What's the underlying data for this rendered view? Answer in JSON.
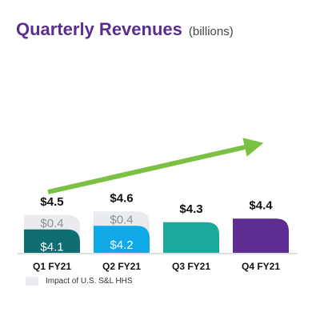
{
  "chart_data": {
    "type": "bar",
    "title": "Quarterly Revenues",
    "subtitle": "(billions)",
    "categories": [
      "Q1 FY21",
      "Q2 FY21",
      "Q3 FY21",
      "Q4 FY21"
    ],
    "totals": [
      4.5,
      4.6,
      4.3,
      4.4
    ],
    "total_labels": [
      "$4.5",
      "$4.6",
      "$4.3",
      "$4.4"
    ],
    "series": [
      {
        "name": "",
        "values": [
          4.1,
          4.2,
          4.3,
          4.4
        ],
        "labels": [
          "$4.1",
          "$4.2",
          "",
          ""
        ],
        "colors": [
          "#0e6e74",
          "#11a8e8",
          "#1aa99b",
          "#5d2d91"
        ]
      },
      {
        "name": "Impact of U.S. S&L HHS",
        "values": [
          0.4,
          0.4,
          0,
          0
        ],
        "labels": [
          "$0.4",
          "$0.4",
          "",
          ""
        ],
        "color": "#e9ebef"
      }
    ],
    "trend_arrow": {
      "color": "#7ac143",
      "from_category": "Q1 FY21",
      "to_category": "Q4 FY21"
    },
    "legend": {
      "entries": [
        "Impact of U.S. S&L HHS"
      ],
      "placement": "bottom-left"
    },
    "grid": false
  }
}
